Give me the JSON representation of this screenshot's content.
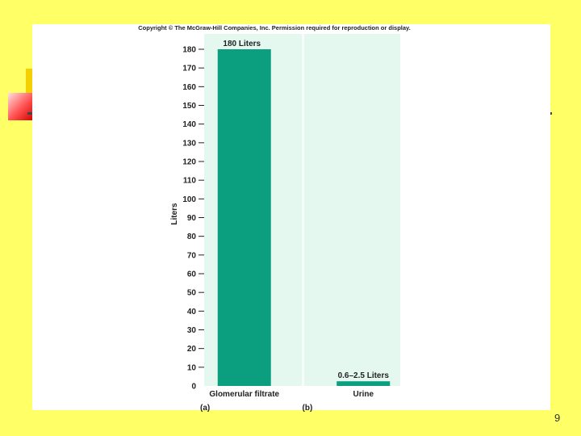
{
  "slide": {
    "copyright": "Copyright © The McGraw-Hill Companies, Inc. Permission required for reproduction or display.",
    "page_number": "9"
  },
  "chart_data": {
    "type": "bar",
    "title": "",
    "xlabel": "",
    "ylabel": "Liters",
    "ylim": [
      0,
      180
    ],
    "yticks": [
      0,
      10,
      20,
      30,
      40,
      50,
      60,
      70,
      80,
      90,
      100,
      110,
      120,
      130,
      140,
      150,
      160,
      170,
      180
    ],
    "categories": [
      "Glomerular filtrate",
      "Urine"
    ],
    "values": [
      180,
      2.5
    ],
    "data_labels": [
      "180 Liters",
      "0.6–2.5 Liters"
    ],
    "panel_labels": [
      "(a)",
      "(b)"
    ],
    "grid": false,
    "colors": {
      "bar": "#0b9f80",
      "plot_background": "#e4f8f0",
      "divider": "#ffffff"
    }
  }
}
